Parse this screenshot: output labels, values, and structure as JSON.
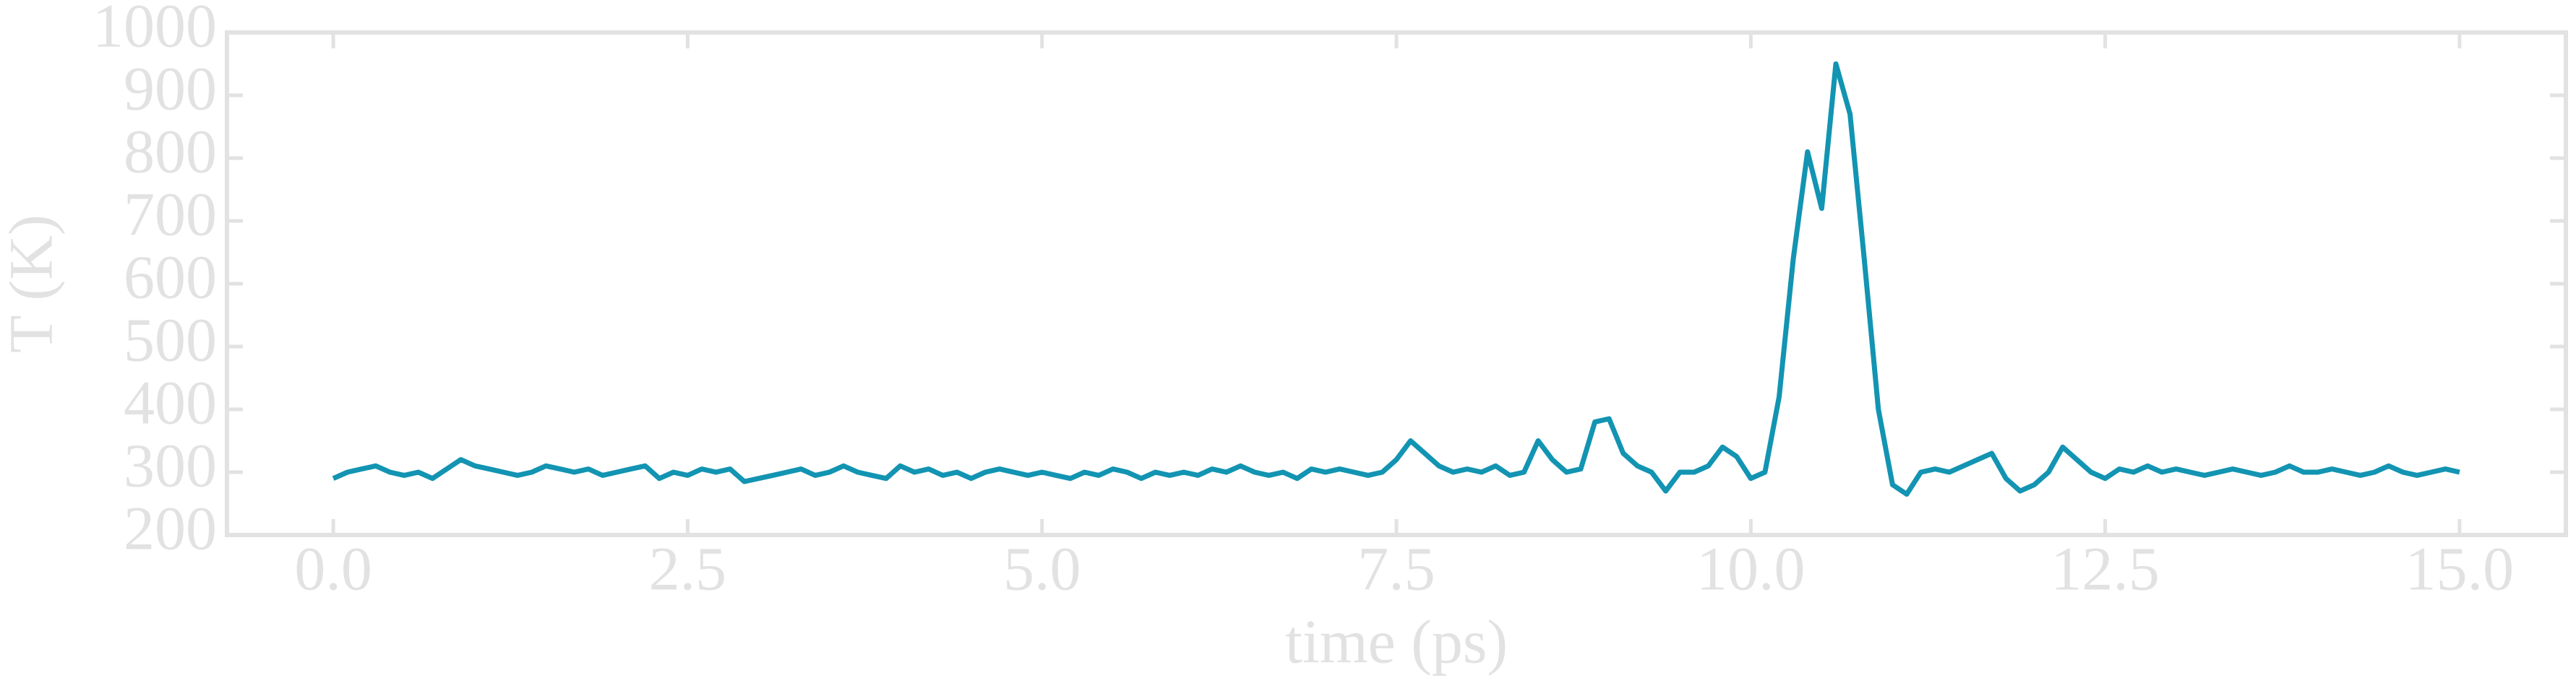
{
  "chart_data": {
    "type": "line",
    "xlabel": "time (ps)",
    "ylabel": "T (K)",
    "xlim": [
      -0.75,
      15.75
    ],
    "ylim": [
      200,
      1000
    ],
    "xticks": [
      {
        "value": 0,
        "label": "0.0"
      },
      2.5,
      {
        "value": 5,
        "label": "5.0"
      },
      7.5,
      {
        "value": 10,
        "label": "10.0"
      },
      12.5,
      {
        "value": 15,
        "label": "15.0"
      }
    ],
    "yticks": [
      200,
      300,
      400,
      500,
      600,
      700,
      800,
      900,
      1000
    ],
    "axis_color": "#e2e2e2",
    "series": [
      {
        "color": "#1294b2",
        "x": [
          0.0,
          0.1,
          0.2,
          0.3,
          0.4,
          0.5,
          0.6,
          0.7,
          0.8,
          0.9,
          1.0,
          1.1,
          1.2,
          1.3,
          1.4,
          1.5,
          1.6,
          1.7,
          1.8,
          1.9,
          2.0,
          2.1,
          2.2,
          2.3,
          2.4,
          2.5,
          2.6,
          2.7,
          2.8,
          2.9,
          3.0,
          3.1,
          3.2,
          3.3,
          3.4,
          3.5,
          3.6,
          3.7,
          3.8,
          3.9,
          4.0,
          4.1,
          4.2,
          4.3,
          4.4,
          4.5,
          4.6,
          4.7,
          4.8,
          4.9,
          5.0,
          5.1,
          5.2,
          5.3,
          5.4,
          5.5,
          5.6,
          5.7,
          5.8,
          5.9,
          6.0,
          6.1,
          6.2,
          6.3,
          6.4,
          6.5,
          6.6,
          6.7,
          6.8,
          6.9,
          7.0,
          7.1,
          7.2,
          7.3,
          7.4,
          7.5,
          7.6,
          7.7,
          7.8,
          7.9,
          8.0,
          8.1,
          8.2,
          8.3,
          8.4,
          8.5,
          8.6,
          8.7,
          8.8,
          8.9,
          9.0,
          9.1,
          9.2,
          9.3,
          9.4,
          9.5,
          9.6,
          9.7,
          9.8,
          9.9,
          10.0,
          10.1,
          10.2,
          10.3,
          10.4,
          10.5,
          10.6,
          10.7,
          10.8,
          10.9,
          11.0,
          11.1,
          11.2,
          11.3,
          11.4,
          11.5,
          11.6,
          11.7,
          11.8,
          11.9,
          12.0,
          12.1,
          12.2,
          12.3,
          12.4,
          12.5,
          12.6,
          12.7,
          12.8,
          12.9,
          13.0,
          13.1,
          13.2,
          13.3,
          13.4,
          13.5,
          13.6,
          13.7,
          13.8,
          13.9,
          14.0,
          14.1,
          14.2,
          14.3,
          14.4,
          14.5,
          14.6,
          14.7,
          14.8,
          14.9,
          15.0
        ],
        "values": [
          290,
          300,
          305,
          310,
          300,
          295,
          300,
          290,
          305,
          320,
          310,
          305,
          300,
          295,
          300,
          310,
          305,
          300,
          305,
          295,
          300,
          305,
          310,
          290,
          300,
          295,
          305,
          300,
          305,
          285,
          290,
          295,
          300,
          305,
          295,
          300,
          310,
          300,
          295,
          290,
          310,
          300,
          305,
          295,
          300,
          290,
          300,
          305,
          300,
          295,
          300,
          295,
          290,
          300,
          295,
          305,
          300,
          290,
          300,
          295,
          300,
          295,
          305,
          300,
          310,
          300,
          295,
          300,
          290,
          305,
          300,
          305,
          300,
          295,
          300,
          320,
          350,
          330,
          310,
          300,
          305,
          300,
          310,
          295,
          300,
          350,
          320,
          300,
          305,
          380,
          385,
          330,
          310,
          300,
          270,
          300,
          300,
          310,
          340,
          325,
          290,
          300,
          420,
          640,
          810,
          720,
          950,
          870,
          640,
          400,
          280,
          265,
          300,
          305,
          300,
          310,
          320,
          330,
          290,
          270,
          280,
          300,
          340,
          320,
          300,
          290,
          305,
          300,
          310,
          300,
          305,
          300,
          295,
          300,
          305,
          300,
          295,
          300,
          310,
          300,
          300,
          305,
          300,
          295,
          300,
          310,
          300,
          295,
          300,
          305,
          300
        ]
      }
    ]
  }
}
